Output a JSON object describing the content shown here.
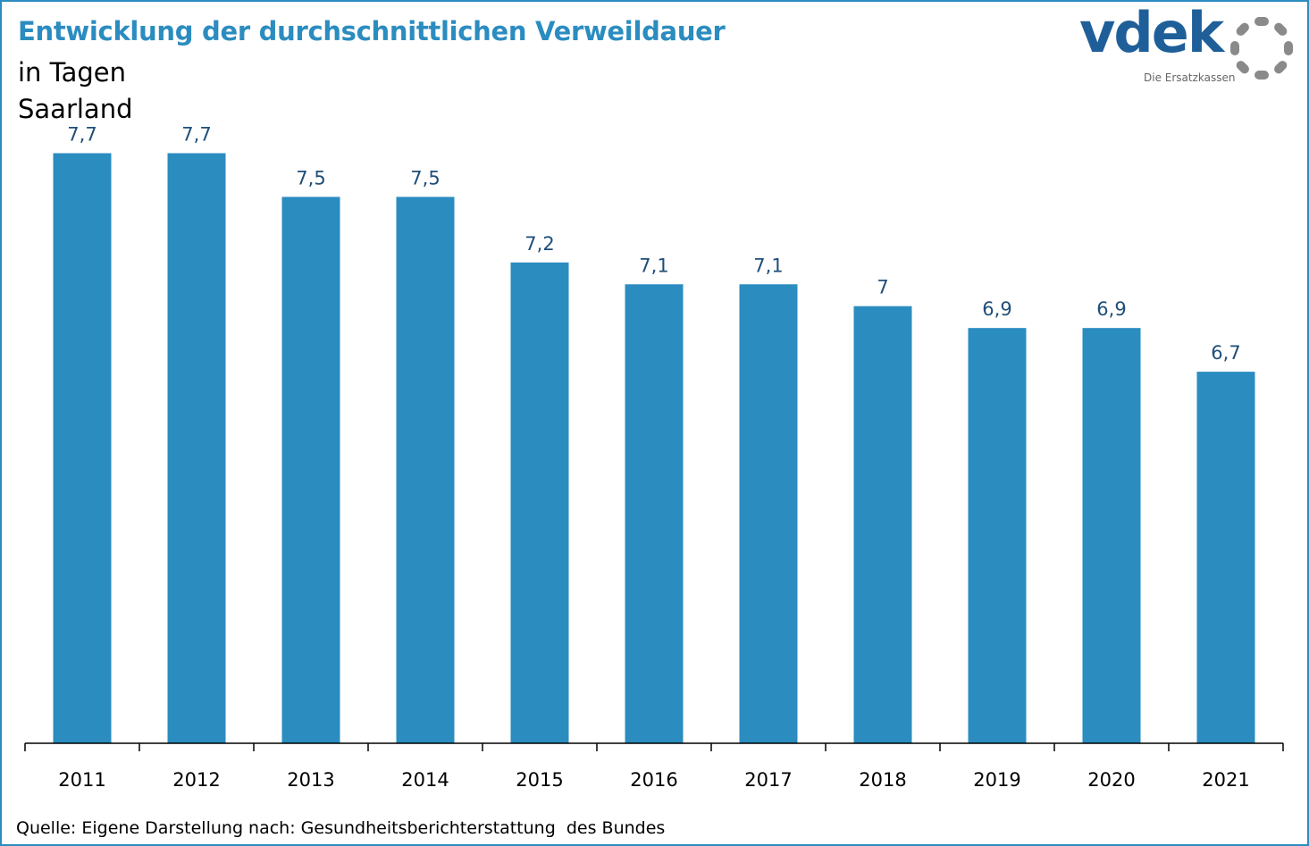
{
  "header": {
    "title": "Entwicklung der durchschnittlichen Verweildauer",
    "subtitle_unit": "in Tagen",
    "subtitle_region": "Saarland"
  },
  "logo": {
    "wordmark": "vdek",
    "tagline": "Die Ersatzkassen"
  },
  "footer": {
    "source": "Quelle: Eigene Darstellung nach: Gesundheitsberichterstattung  des Bundes"
  },
  "colors": {
    "bar": "#2b8cc0",
    "title": "#2b8cc0",
    "data_label": "#1f4e79",
    "axis": "#000000",
    "logo": "#1f5f99",
    "logo_ring": "#8a8a8a"
  },
  "chart_data": {
    "type": "bar",
    "categories": [
      "2011",
      "2012",
      "2013",
      "2014",
      "2015",
      "2016",
      "2017",
      "2018",
      "2019",
      "2020",
      "2021"
    ],
    "values": [
      7.7,
      7.7,
      7.5,
      7.5,
      7.2,
      7.1,
      7.1,
      7.0,
      6.9,
      6.9,
      6.7
    ],
    "value_labels": [
      "7,7",
      "7,7",
      "7,5",
      "7,5",
      "7,2",
      "7,1",
      "7,1",
      "7",
      "6,9",
      "6,9",
      "6,7"
    ],
    "title": "Entwicklung der durchschnittlichen Verweildauer",
    "xlabel": "",
    "ylabel": "",
    "ylim": [
      5.0,
      7.8
    ],
    "grid": false,
    "legend": "none"
  }
}
